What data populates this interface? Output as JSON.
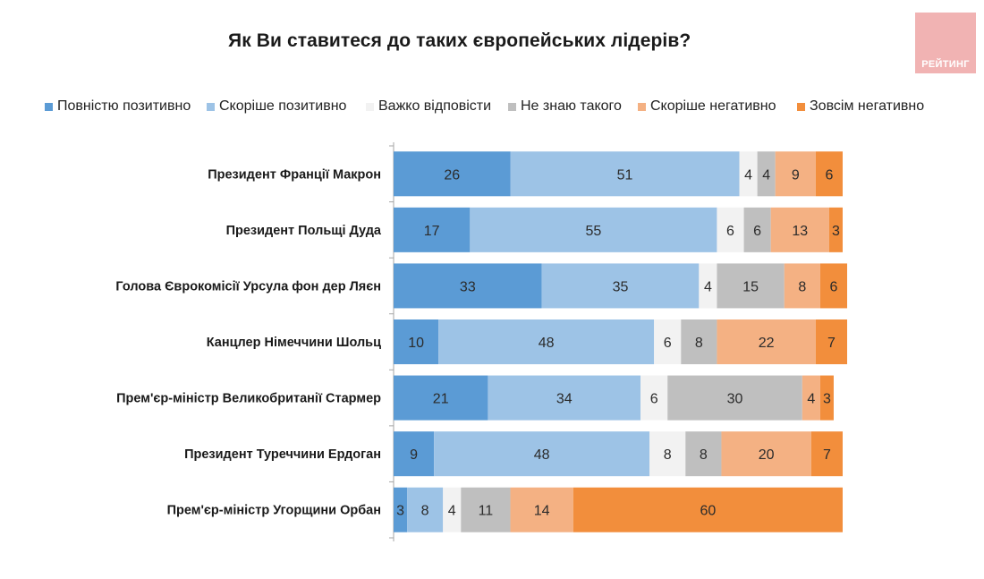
{
  "header": {
    "logo_text": "РЕЙТИНГ"
  },
  "chart_data": {
    "type": "bar",
    "orientation": "horizontal",
    "stacked": true,
    "title": "Як Ви ставитеся до таких європейських лідерів?",
    "xlabel": "",
    "ylabel": "",
    "legend_position": "top",
    "categories": [
      "Президент Франції Макрон",
      "Президент Польщі Дуда",
      "Голова Єврокомісії Урсула фон дер Ляєн",
      "Канцлер Німеччини Шольц",
      "Прем'єр-міністр Великобританії Стармер",
      "Президент Туреччини Ердоган",
      "Прем'єр-міністр Угорщини Орбан"
    ],
    "series": [
      {
        "name": "Повністю позитивно",
        "color": "#5b9bd5",
        "values": [
          26,
          17,
          33,
          10,
          21,
          9,
          3
        ]
      },
      {
        "name": "Скоріше позитивно",
        "color": "#9dc3e6",
        "values": [
          51,
          55,
          35,
          48,
          34,
          48,
          8
        ]
      },
      {
        "name": "Важко відповісти",
        "color": "#f2f2f2",
        "values": [
          4,
          6,
          4,
          6,
          6,
          8,
          4
        ]
      },
      {
        "name": "Не знаю такого",
        "color": "#bfbfbf",
        "values": [
          4,
          6,
          15,
          8,
          30,
          8,
          11
        ]
      },
      {
        "name": "Скоріше негативно",
        "color": "#f4b183",
        "values": [
          9,
          13,
          8,
          22,
          4,
          20,
          14
        ]
      },
      {
        "name": "Зовсім негативно",
        "color": "#f28e3c",
        "values": [
          6,
          3,
          6,
          7,
          3,
          7,
          60
        ]
      }
    ],
    "xlim": [
      0,
      100
    ]
  }
}
